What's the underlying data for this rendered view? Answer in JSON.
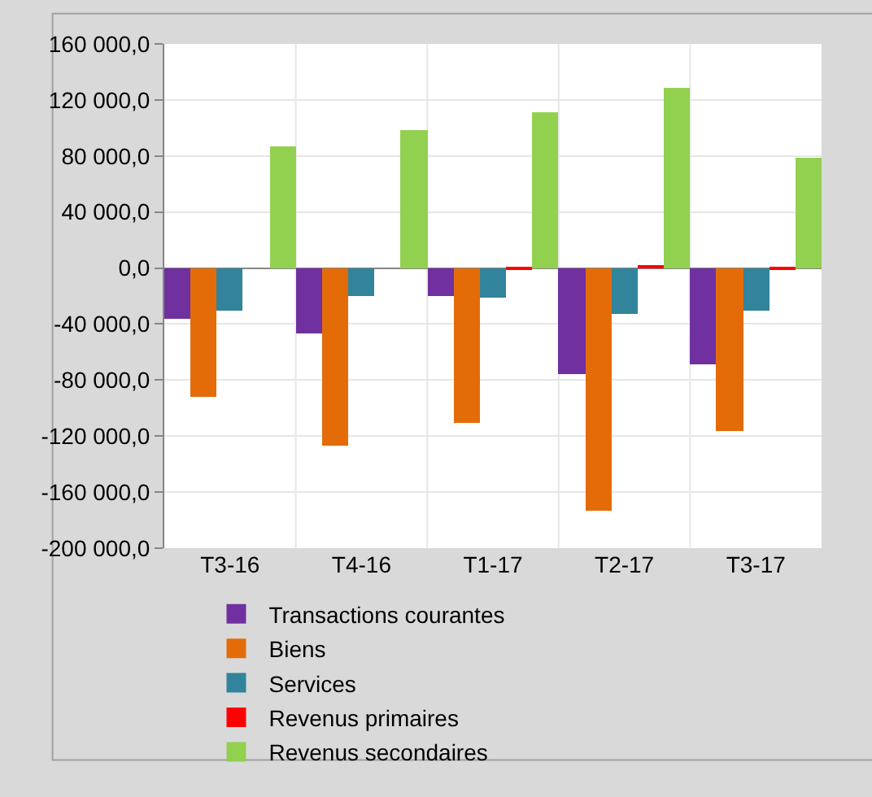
{
  "chart_data": {
    "type": "bar",
    "categories": [
      "T3-16",
      "T4-16",
      "T1-17",
      "T2-17",
      "T3-17"
    ],
    "series": [
      {
        "name": "Transactions courantes",
        "color": "#7030a0",
        "values": [
          -36000,
          -47000,
          -20500,
          -75500,
          -68500
        ]
      },
      {
        "name": "Biens",
        "color": "#e36c09",
        "values": [
          -92500,
          -126500,
          -110000,
          -173000,
          -116000
        ]
      },
      {
        "name": "Services",
        "color": "#31849b",
        "values": [
          -30500,
          -20000,
          -21500,
          -33000,
          -31000
        ]
      },
      {
        "name": "Revenus primaires",
        "color": "#ff0000",
        "values": [
          0,
          0,
          -500,
          1500,
          -500
        ]
      },
      {
        "name": "Revenus secondaires",
        "color": "#92d050",
        "values": [
          86500,
          99000,
          111500,
          129000,
          78500
        ]
      }
    ],
    "ylim": [
      -200000,
      160000
    ],
    "yticks": [
      {
        "value": -200000,
        "label": "-200 000,0"
      },
      {
        "value": -160000,
        "label": "-160 000,0"
      },
      {
        "value": -120000,
        "label": "-120 000,0"
      },
      {
        "value": -80000,
        "label": "-80 000,0"
      },
      {
        "value": -40000,
        "label": "-40 000,0"
      },
      {
        "value": 0,
        "label": "0,0"
      },
      {
        "value": 40000,
        "label": "40 000,0"
      },
      {
        "value": 80000,
        "label": "80 000,0"
      },
      {
        "value": 120000,
        "label": "120 000,0"
      },
      {
        "value": 160000,
        "label": "160 000,0"
      }
    ],
    "grid": true,
    "legend": "bottom"
  }
}
